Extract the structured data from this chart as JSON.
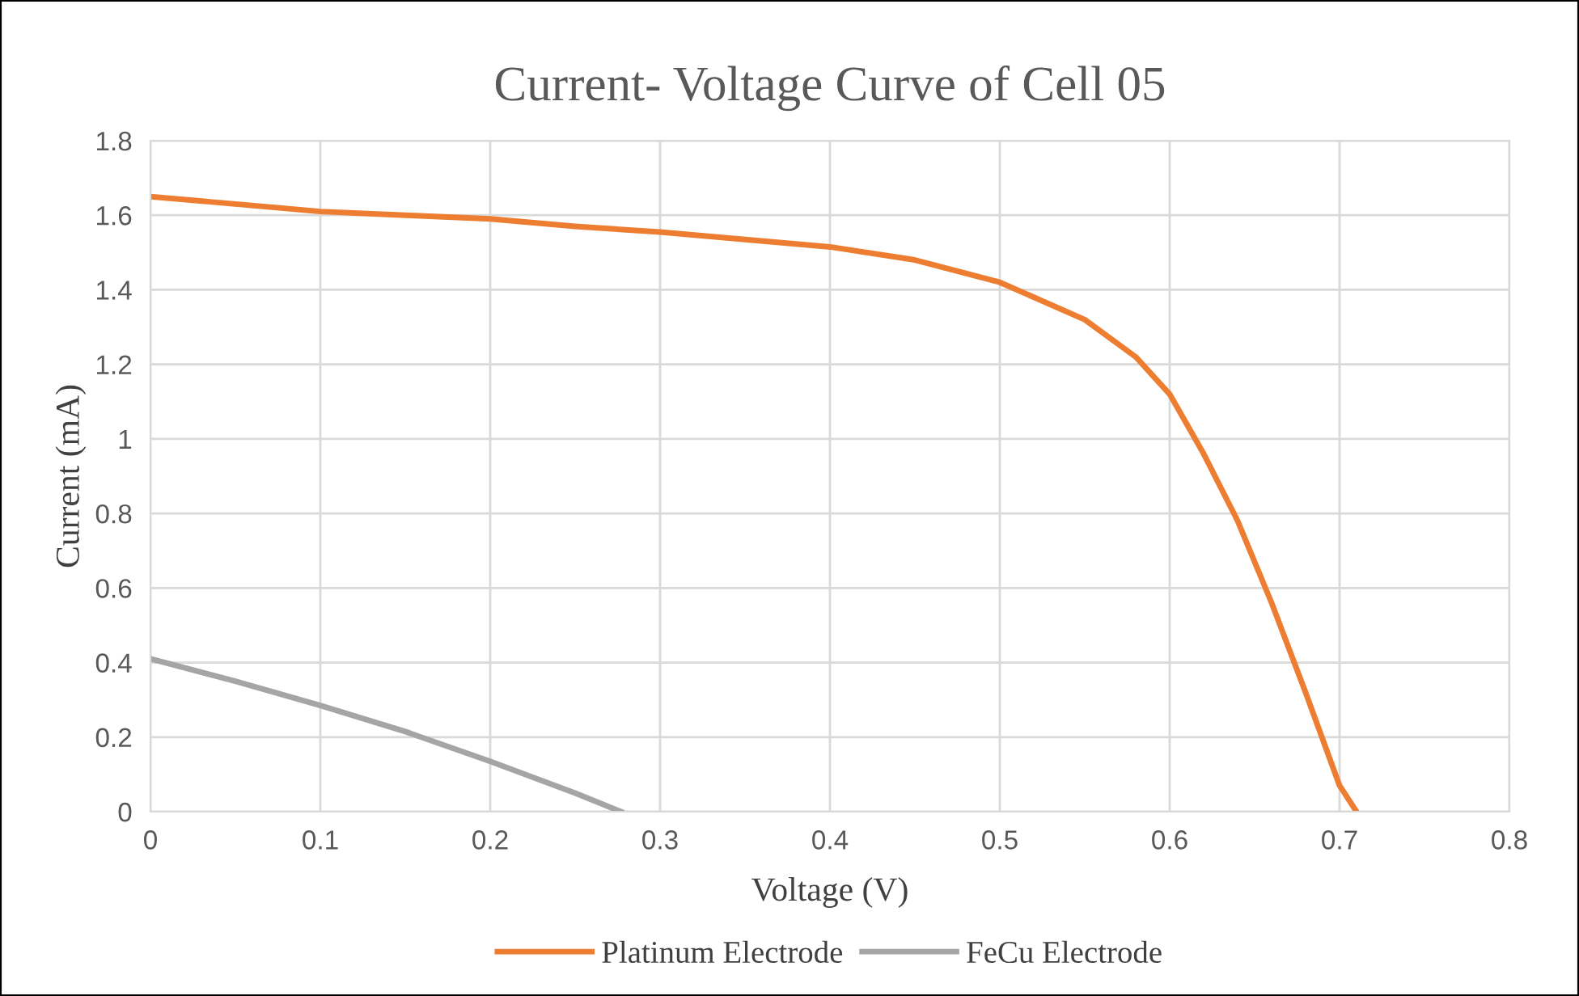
{
  "chart_data": {
    "type": "line",
    "title": "Current- Voltage Curve of Cell 05",
    "xlabel": "Voltage (V)",
    "ylabel": "Current (mA)",
    "xlim": [
      0,
      0.8
    ],
    "xticks": [
      0,
      0.1,
      0.2,
      0.3,
      0.4,
      0.5,
      0.6,
      0.7,
      0.8
    ],
    "ylim": [
      0,
      1.8
    ],
    "yticks": [
      0,
      0.2,
      0.4,
      0.6,
      0.8,
      1,
      1.2,
      1.4,
      1.6,
      1.8
    ],
    "grid": true,
    "legend": "bottom",
    "marker": "none",
    "line_style": "solid",
    "series": [
      {
        "name": "Platinum Electrode",
        "color": "#ed7d31",
        "x": [
          0,
          0.05,
          0.1,
          0.15,
          0.2,
          0.25,
          0.3,
          0.35,
          0.4,
          0.45,
          0.5,
          0.55,
          0.58,
          0.6,
          0.62,
          0.64,
          0.66,
          0.68,
          0.7,
          0.71
        ],
        "values": [
          1.65,
          1.63,
          1.61,
          1.6,
          1.59,
          1.57,
          1.555,
          1.535,
          1.515,
          1.48,
          1.42,
          1.32,
          1.22,
          1.12,
          0.96,
          0.78,
          0.56,
          0.32,
          0.07,
          0
        ]
      },
      {
        "name": "FeCu Electrode",
        "color": "#a5a5a5",
        "x": [
          0,
          0.05,
          0.1,
          0.15,
          0.2,
          0.25,
          0.277
        ],
        "values": [
          0.41,
          0.35,
          0.285,
          0.215,
          0.135,
          0.05,
          0
        ]
      }
    ]
  }
}
